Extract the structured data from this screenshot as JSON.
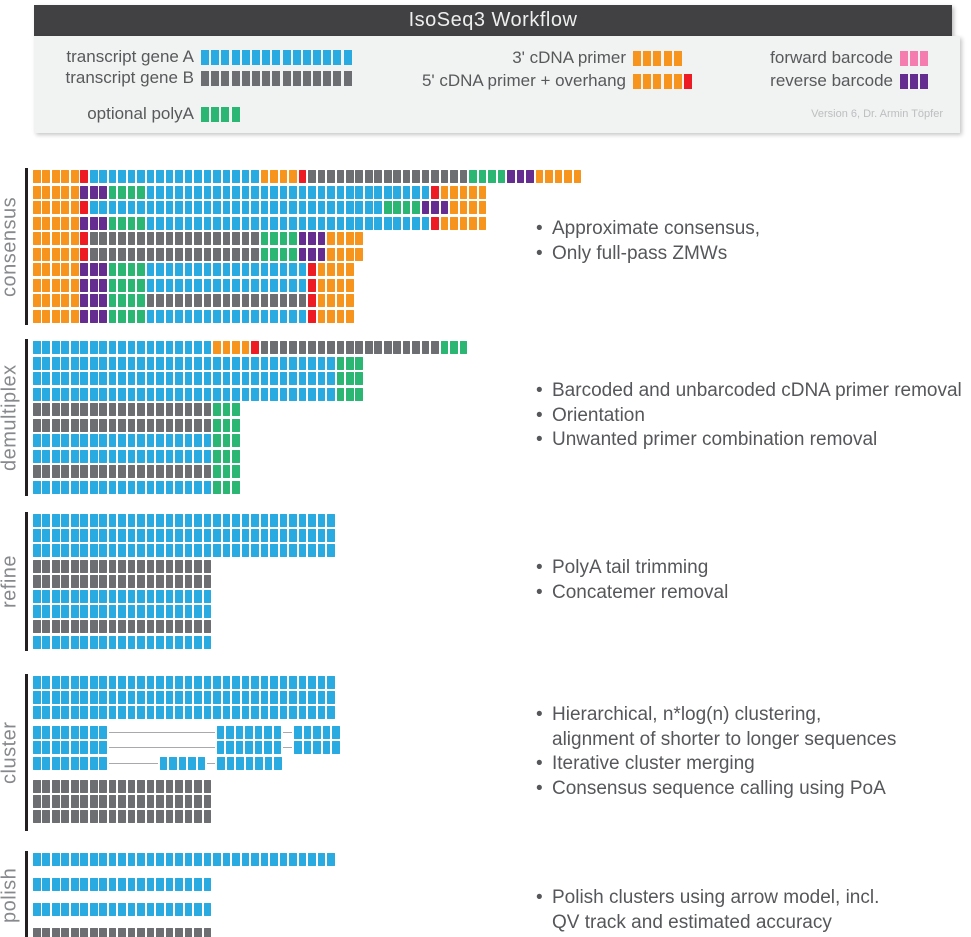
{
  "title": "IsoSeq3 Workflow",
  "legend": {
    "items": [
      {
        "label": "transcript gene A",
        "swatch": [
          [
            "blue",
            15
          ]
        ]
      },
      {
        "label": "transcript gene B",
        "swatch": [
          [
            "gray",
            15
          ]
        ]
      },
      {
        "label": "optional polyA",
        "swatch": [
          [
            "green",
            4
          ]
        ]
      },
      {
        "label": "3' cDNA primer",
        "swatch": [
          [
            "orange",
            5
          ]
        ]
      },
      {
        "label": "5' cDNA primer + overhang",
        "swatch": [
          [
            "orange",
            5
          ],
          [
            "red",
            1
          ]
        ]
      },
      {
        "label": "forward barcode",
        "swatch": [
          [
            "pink",
            3
          ]
        ]
      },
      {
        "label": "reverse barcode",
        "swatch": [
          [
            "purple",
            3
          ]
        ]
      }
    ],
    "version_note": "Version 6, Dr. Armin Töpfer"
  },
  "colors": {
    "blue": "#29ABE2",
    "gray": "#6D6E71",
    "green": "#2BB673",
    "orange": "#F7941E",
    "red": "#ED1C24",
    "pink": "#F47CAE",
    "purple": "#662D91",
    "header_bg": "#414042",
    "panel_bg": "#F1F2F2",
    "title_text": "#EDEEEE",
    "legend_text": "#58595B",
    "version_text": "#BCBEC0",
    "note_text": "#56575A",
    "label_text": "#87898C",
    "bar": "#231F20",
    "splice_line": "#A7A9AC"
  },
  "sections": [
    {
      "label": "consensus",
      "notes": [
        {
          "bullet": true,
          "text": "Approximate consensus,"
        },
        {
          "bullet": true,
          "text": "Only full-pass ZMWs"
        }
      ],
      "rows": [
        {
          "segs": [
            [
              "orange",
              5
            ],
            [
              "red",
              1
            ],
            [
              "blue",
              18
            ],
            [
              "orange",
              4
            ],
            [
              "red",
              1
            ],
            [
              "gray",
              17
            ],
            [
              "green",
              4
            ],
            [
              "purple",
              3
            ],
            [
              "orange",
              5
            ]
          ]
        },
        {
          "segs": [
            [
              "orange",
              5
            ],
            [
              "purple",
              3
            ],
            [
              "green",
              4
            ],
            [
              "blue",
              30
            ],
            [
              "red",
              1
            ],
            [
              "orange",
              5
            ]
          ]
        },
        {
          "segs": [
            [
              "orange",
              5
            ],
            [
              "red",
              1
            ],
            [
              "blue",
              31
            ],
            [
              "green",
              4
            ],
            [
              "purple",
              3
            ],
            [
              "orange",
              4
            ]
          ]
        },
        {
          "segs": [
            [
              "orange",
              5
            ],
            [
              "purple",
              3
            ],
            [
              "green",
              4
            ],
            [
              "blue",
              30
            ],
            [
              "red",
              1
            ],
            [
              "orange",
              5
            ]
          ]
        },
        {
          "segs": [
            [
              "orange",
              5
            ],
            [
              "red",
              1
            ],
            [
              "gray",
              18
            ],
            [
              "green",
              4
            ],
            [
              "purple",
              3
            ],
            [
              "orange",
              4
            ]
          ]
        },
        {
          "segs": [
            [
              "orange",
              5
            ],
            [
              "red",
              1
            ],
            [
              "gray",
              18
            ],
            [
              "green",
              4
            ],
            [
              "purple",
              3
            ],
            [
              "orange",
              4
            ]
          ]
        },
        {
          "segs": [
            [
              "orange",
              5
            ],
            [
              "purple",
              3
            ],
            [
              "green",
              4
            ],
            [
              "blue",
              17
            ],
            [
              "red",
              1
            ],
            [
              "orange",
              4
            ]
          ]
        },
        {
          "segs": [
            [
              "orange",
              5
            ],
            [
              "purple",
              3
            ],
            [
              "green",
              4
            ],
            [
              "blue",
              17
            ],
            [
              "red",
              1
            ],
            [
              "orange",
              4
            ]
          ]
        },
        {
          "segs": [
            [
              "orange",
              5
            ],
            [
              "purple",
              3
            ],
            [
              "green",
              4
            ],
            [
              "gray",
              17
            ],
            [
              "red",
              1
            ],
            [
              "orange",
              4
            ]
          ]
        },
        {
          "segs": [
            [
              "orange",
              5
            ],
            [
              "purple",
              3
            ],
            [
              "green",
              4
            ],
            [
              "blue",
              17
            ],
            [
              "red",
              1
            ],
            [
              "orange",
              4
            ]
          ]
        }
      ]
    },
    {
      "label": "demultiplex",
      "notes": [
        {
          "bullet": true,
          "text": "Barcoded and unbarcoded cDNA primer removal"
        },
        {
          "bullet": true,
          "text": "Orientation"
        },
        {
          "bullet": true,
          "text": "Unwanted primer combination removal"
        }
      ],
      "rows": [
        {
          "segs": [
            [
              "blue",
              19
            ],
            [
              "orange",
              4
            ],
            [
              "red",
              1
            ],
            [
              "gray",
              19
            ],
            [
              "green",
              3
            ]
          ]
        },
        {
          "segs": [
            [
              "blue",
              32
            ],
            [
              "green",
              3
            ]
          ]
        },
        {
          "segs": [
            [
              "blue",
              32
            ],
            [
              "green",
              3
            ]
          ]
        },
        {
          "segs": [
            [
              "blue",
              32
            ],
            [
              "green",
              3
            ]
          ]
        },
        {
          "segs": [
            [
              "gray",
              19
            ],
            [
              "green",
              3
            ]
          ]
        },
        {
          "segs": [
            [
              "gray",
              19
            ],
            [
              "green",
              3
            ]
          ]
        },
        {
          "segs": [
            [
              "blue",
              19
            ],
            [
              "green",
              3
            ]
          ]
        },
        {
          "segs": [
            [
              "blue",
              19
            ],
            [
              "green",
              3
            ]
          ]
        },
        {
          "segs": [
            [
              "gray",
              19
            ],
            [
              "green",
              3
            ]
          ]
        },
        {
          "segs": [
            [
              "blue",
              19
            ],
            [
              "green",
              3
            ]
          ]
        }
      ]
    },
    {
      "label": "refine",
      "notes": [
        {
          "bullet": true,
          "text": "PolyA tail trimming"
        },
        {
          "bullet": true,
          "text": "Concatemer removal"
        }
      ],
      "rows": [
        {
          "segs": [
            [
              "blue",
              32
            ]
          ]
        },
        {
          "segs": [
            [
              "blue",
              32
            ]
          ]
        },
        {
          "segs": [
            [
              "blue",
              32
            ]
          ]
        },
        {
          "segs": [
            [
              "gray",
              19
            ]
          ]
        },
        {
          "segs": [
            [
              "gray",
              19
            ]
          ]
        },
        {
          "segs": [
            [
              "blue",
              19
            ]
          ]
        },
        {
          "segs": [
            [
              "blue",
              19
            ]
          ]
        },
        {
          "segs": [
            [
              "gray",
              19
            ]
          ]
        },
        {
          "segs": [
            [
              "blue",
              19
            ]
          ]
        }
      ]
    },
    {
      "label": "cluster",
      "notes": [
        {
          "bullet": true,
          "text": "Hierarchical, n*log(n) clustering,"
        },
        {
          "bullet": false,
          "text": "alignment of shorter to longer sequences"
        },
        {
          "bullet": true,
          "text": "Iterative cluster merging"
        },
        {
          "bullet": true,
          "text": "Consensus sequence calling using PoA"
        }
      ],
      "rows": [
        {
          "segs": [
            [
              "blue",
              32
            ]
          ]
        },
        {
          "segs": [
            [
              "blue",
              32
            ]
          ]
        },
        {
          "segs": [
            [
              "blue",
              32
            ]
          ]
        },
        {
          "mt": 7,
          "segs": [
            [
              "blue",
              8
            ],
            [
              "line",
              106
            ],
            [
              "blue",
              7
            ],
            [
              "line",
              9
            ],
            [
              "blue",
              5
            ]
          ]
        },
        {
          "segs": [
            [
              "blue",
              8
            ],
            [
              "line",
              106
            ],
            [
              "blue",
              7
            ],
            [
              "line",
              9
            ],
            [
              "blue",
              5
            ]
          ]
        },
        {
          "mt": 3,
          "segs": [
            [
              "blue",
              8
            ],
            [
              "line",
              49
            ],
            [
              "blue",
              5
            ],
            [
              "line",
              8
            ],
            [
              "blue",
              7
            ]
          ]
        },
        {
          "mt": 10,
          "segs": [
            [
              "gray",
              19
            ]
          ]
        },
        {
          "segs": [
            [
              "gray",
              19
            ]
          ]
        },
        {
          "segs": [
            [
              "gray",
              19
            ]
          ]
        }
      ]
    },
    {
      "label": "polish",
      "notes": [
        {
          "bullet": true,
          "text": "Polish clusters using arrow model, incl."
        },
        {
          "bullet": false,
          "text": "QV track and estimated accuracy"
        }
      ],
      "rows": [
        {
          "segs": [
            [
              "blue",
              32
            ]
          ]
        },
        {
          "segs": [
            [
              "blue",
              19
            ]
          ]
        },
        {
          "segs": [
            [
              "blue",
              19
            ]
          ]
        },
        {
          "segs": [
            [
              "gray",
              19
            ]
          ]
        }
      ]
    }
  ]
}
